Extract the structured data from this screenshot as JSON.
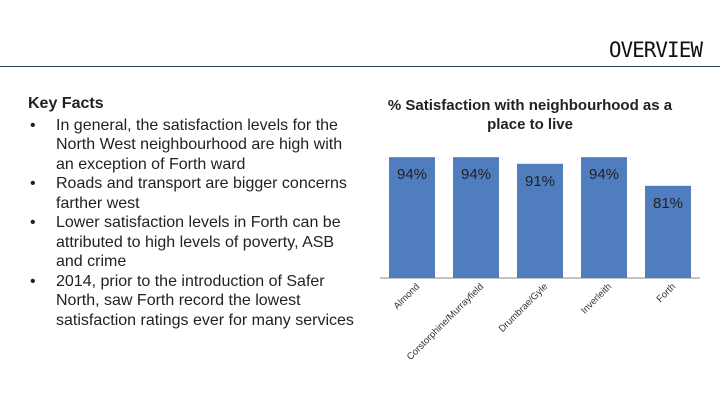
{
  "header": {
    "title": "OVERVIEW"
  },
  "key_facts": {
    "heading": "Key Facts",
    "bullets": [
      "In general, the satisfaction levels for the North West neighbourhood are high with an exception of Forth ward",
      "Roads and transport are bigger concerns farther west",
      "Lower satisfaction levels in Forth can be attributed to high levels of poverty, ASB and crime",
      "2014, prior to the introduction of Safer North, saw Forth record the lowest satisfaction ratings ever for many services"
    ]
  },
  "colors": {
    "bar": "#4f7dbd",
    "rule": "#2a3a5a"
  },
  "chart_data": {
    "type": "bar",
    "title": "% Satisfaction with neighbourhood as a place to live",
    "categories": [
      "Almond",
      "Corstorphine/Murrayfield",
      "Drumbrae/Gyle",
      "Inverleith",
      "Forth"
    ],
    "values": [
      94,
      94,
      91,
      94,
      81
    ],
    "data_labels": [
      "94%",
      "94%",
      "91%",
      "94%",
      "81%"
    ],
    "ylim": [
      0,
      100
    ],
    "grid": false,
    "legend": "none"
  }
}
